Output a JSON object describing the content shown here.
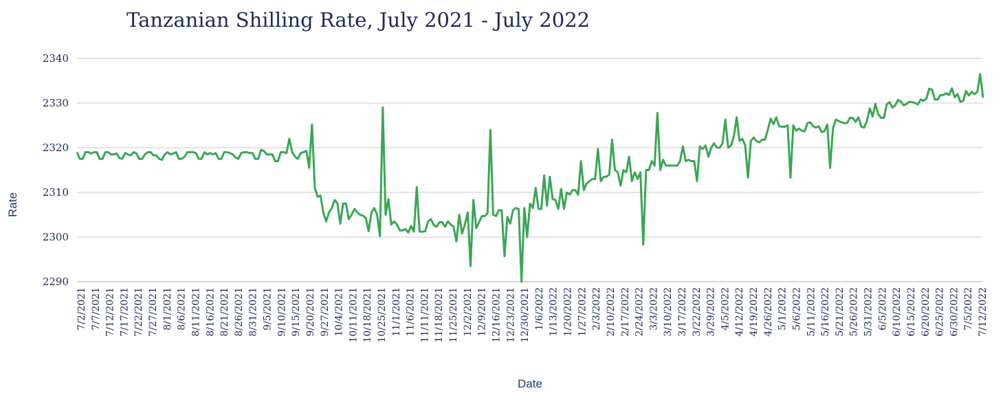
{
  "chart_data": {
    "type": "line",
    "title": "Tanzanian Shilling Rate, July 2021 - July 2022",
    "xlabel": "Date",
    "ylabel": "Rate",
    "ylim": [
      2290,
      2340
    ],
    "yticks": [
      2290,
      2300,
      2310,
      2320,
      2330,
      2340
    ],
    "grid": "horizontal",
    "line_color": "#3aa655",
    "grid_color": "#c8c8c8",
    "text_color": "#1d2a57",
    "x_tick_labels": [
      "7/2/2021",
      "7/7/2021",
      "7/12/2021",
      "7/17/2021",
      "7/22/2021",
      "7/27/2021",
      "8/1/2021",
      "8/6/2021",
      "8/11/2021",
      "8/16/2021",
      "8/21/2021",
      "8/26/2021",
      "8/31/2021",
      "9/5/2021",
      "9/10/2021",
      "9/15/2021",
      "9/20/2021",
      "9/27/2021",
      "10/4/2021",
      "10/11/2021",
      "10/18/2021",
      "10/25/2021",
      "11/1/2021",
      "11/6/2021",
      "11/11/2021",
      "11/18/2021",
      "11/25/2021",
      "12/2/2021",
      "12/9/2021",
      "12/16/2021",
      "12/23/2021",
      "12/30/2021",
      "1/6/2022",
      "1/13/2022",
      "1/20/2022",
      "1/27/2022",
      "2/3/2022",
      "2/10/2022",
      "2/17/2022",
      "2/24/2022",
      "3/3/2022",
      "3/10/2022",
      "3/17/2022",
      "3/22/2022",
      "3/29/2022",
      "4/5/2022",
      "4/12/2022",
      "4/19/2022",
      "4/26/2022",
      "5/1/2022",
      "5/6/2022",
      "5/11/2022",
      "5/16/2022",
      "5/21/2022",
      "5/26/2022",
      "5/31/2022",
      "6/5/2022",
      "6/10/2022",
      "6/15/2022",
      "6/20/2022",
      "6/25/2022",
      "6/30/2022",
      "7/5/2022",
      "7/12/2022"
    ],
    "series": [
      {
        "values": [
          2319,
          2317.5,
          2317.5,
          2319,
          2319,
          2318.7,
          2319,
          2319,
          2317.5,
          2317.5,
          2319,
          2319,
          2318.5,
          2318.5,
          2318.7,
          2317.7,
          2317.5,
          2318.8,
          2318.5,
          2318.3,
          2319,
          2318.7,
          2317.5,
          2317.5,
          2318.5,
          2319,
          2319,
          2318.3,
          2318.3,
          2317.5,
          2317.3,
          2318.5,
          2319,
          2318.5,
          2318.7,
          2319,
          2317.5,
          2317.5,
          2318,
          2319,
          2319,
          2319,
          2318.8,
          2317.5,
          2317.5,
          2319,
          2318.5,
          2318.8,
          2318.5,
          2318.8,
          2317.5,
          2317.5,
          2319,
          2319,
          2318.8,
          2318.5,
          2317.8,
          2317.5,
          2318.8,
          2319,
          2319,
          2318.8,
          2318.8,
          2317.5,
          2317.5,
          2319.5,
          2319.3,
          2318.5,
          2318.5,
          2318.5,
          2317,
          2317,
          2319,
          2319,
          2318.8,
          2322,
          2319,
          2318,
          2317.5,
          2318.8,
          2319,
          2319.3,
          2315.5,
          2325.2,
          2311,
          2309,
          2309.3,
          2305.5,
          2303.5,
          2305.5,
          2306.5,
          2308.3,
          2307.5,
          2303,
          2307.5,
          2307.5,
          2304,
          2305,
          2306.3,
          2305.5,
          2305,
          2304.8,
          2304.3,
          2301.3,
          2305.5,
          2306.5,
          2305,
          2300.2,
          2329,
          2305,
          2308.5,
          2302.8,
          2303.5,
          2302.8,
          2301.5,
          2301.5,
          2301.8,
          2301,
          2302.5,
          2301.2,
          2311.2,
          2301.2,
          2301.2,
          2301.3,
          2303.5,
          2304,
          2302.7,
          2302.3,
          2303.3,
          2303.3,
          2302.3,
          2303.5,
          2302.8,
          2302.3,
          2299,
          2305,
          2300.8,
          2302.8,
          2305.5,
          2293.5,
          2308.3,
          2302,
          2303.3,
          2304.7,
          2304.7,
          2305.3,
          2324,
          2305,
          2304.7,
          2306,
          2306,
          2295.7,
          2304.5,
          2303,
          2306,
          2306.5,
          2306.3,
          2290,
          2306.5,
          2300,
          2307.5,
          2306.5,
          2311,
          2306.3,
          2306.3,
          2313.8,
          2307,
          2313.5,
          2308.5,
          2308.3,
          2306.3,
          2310.8,
          2306.3,
          2310,
          2309.5,
          2310.5,
          2310.5,
          2309.5,
          2317,
          2310.5,
          2312,
          2312.5,
          2313,
          2313,
          2319.7,
          2312.5,
          2313.5,
          2313.5,
          2314,
          2321.8,
          2315,
          2314.5,
          2311.5,
          2315,
          2314.5,
          2318,
          2312.5,
          2314.5,
          2313,
          2314.5,
          2298.3,
          2315,
          2315,
          2317,
          2316,
          2327.8,
          2315,
          2317.3,
          2316,
          2316,
          2316,
          2316,
          2316,
          2317,
          2320.3,
          2317,
          2317.3,
          2317,
          2317,
          2312.5,
          2320.3,
          2319.7,
          2320.5,
          2318,
          2320,
          2321,
          2320,
          2320,
          2321,
          2326.3,
          2320,
          2320.5,
          2322.5,
          2326.8,
          2321.5,
          2322,
          2320.5,
          2313.3,
          2321.5,
          2322.3,
          2321.5,
          2321.2,
          2321.8,
          2321.8,
          2324,
          2326.5,
          2325.3,
          2326.8,
          2324.8,
          2324.7,
          2324.7,
          2325,
          2313.3,
          2325,
          2323.8,
          2324.3,
          2323.8,
          2323.7,
          2325.5,
          2325.7,
          2324.8,
          2324.5,
          2324.8,
          2323.5,
          2323.7,
          2325.2,
          2315.5,
          2324.3,
          2326.3,
          2326,
          2325.7,
          2325.5,
          2325.5,
          2326.7,
          2326.7,
          2325.8,
          2326.8,
          2324.7,
          2324.5,
          2326,
          2328.8,
          2327,
          2329.8,
          2327.5,
          2326.7,
          2326.7,
          2329.7,
          2330.2,
          2329,
          2329.5,
          2330.7,
          2330.3,
          2329.5,
          2329.8,
          2330.3,
          2330.2,
          2330,
          2329.7,
          2330.8,
          2330.5,
          2331,
          2333.2,
          2333,
          2330.8,
          2330.8,
          2331.8,
          2331.8,
          2332.2,
          2331.8,
          2333.3,
          2331.3,
          2332,
          2330.3,
          2330.5,
          2332.7,
          2331.7,
          2332.5,
          2332,
          2332.5,
          2336.5,
          2331.2
        ]
      }
    ]
  }
}
